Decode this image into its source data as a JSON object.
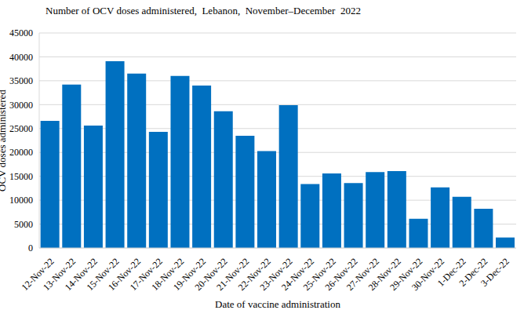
{
  "chart_data": {
    "type": "bar",
    "title": "Number of OCV doses administered,  Lebanon,  November–December  2022",
    "x_label": "Date of vaccine administration",
    "y_label": "OCV doses administered",
    "categories": [
      "12-Nov-22",
      "13-Nov-22",
      "14-Nov-22",
      "15-Nov-22",
      "16-Nov-22",
      "17-Nov-22",
      "18-Nov-22",
      "19-Nov-22",
      "20-Nov-22",
      "21-Nov-22",
      "22-Nov-22",
      "23-Nov-22",
      "24-Nov-22",
      "25-Nov-22",
      "26-Nov-22",
      "27-Nov-22",
      "28-Nov-22",
      "29-Nov-22",
      "30-Nov-22",
      "1-Dec-22",
      "2-Dec-22",
      "3-Dec-22"
    ],
    "values": [
      26600,
      34200,
      25600,
      39100,
      36500,
      24300,
      36000,
      34000,
      28600,
      23500,
      20300,
      29900,
      13400,
      15600,
      13600,
      15900,
      16100,
      6100,
      12700,
      10700,
      8200,
      2200
    ],
    "color": "#0070c0",
    "ylim": [
      0,
      45000
    ],
    "yticks": [
      0,
      5000,
      10000,
      15000,
      20000,
      25000,
      30000,
      35000,
      40000,
      45000
    ],
    "grid": true
  }
}
